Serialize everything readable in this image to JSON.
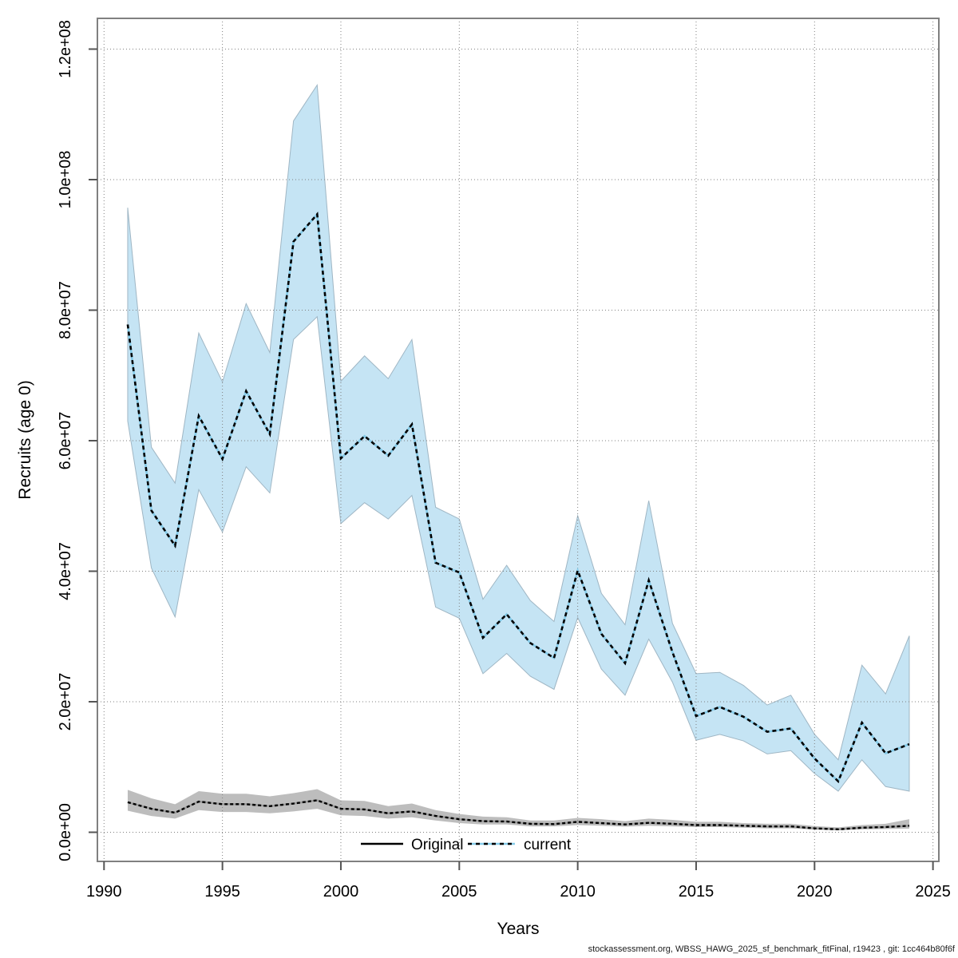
{
  "chart_data": {
    "type": "line",
    "title": "",
    "xlabel": "Years",
    "ylabel": "Recruits (age 0)",
    "xlim": [
      1989.6,
      2025.3
    ],
    "ylim": [
      0,
      126000000
    ],
    "grid": "dotted",
    "x_ticks": [
      1990,
      1995,
      2000,
      2005,
      2010,
      2015,
      2020,
      2025
    ],
    "y_ticks": [
      {
        "value": 0,
        "label": "0.0e+00"
      },
      {
        "value": 20000000,
        "label": "2.0e+07"
      },
      {
        "value": 40000000,
        "label": "4.0e+07"
      },
      {
        "value": 60000000,
        "label": "6.0e+07"
      },
      {
        "value": 80000000,
        "label": "8.0e+07"
      },
      {
        "value": 100000000,
        "label": "1.0e+08"
      },
      {
        "value": 120000000,
        "label": "1.2e+08"
      }
    ],
    "years": [
      1991,
      1992,
      1993,
      1994,
      1995,
      1996,
      1997,
      1998,
      1999,
      2000,
      2001,
      2002,
      2003,
      2004,
      2005,
      2006,
      2007,
      2008,
      2009,
      2010,
      2011,
      2012,
      2013,
      2014,
      2015,
      2016,
      2017,
      2018,
      2019,
      2020,
      2021,
      2022,
      2023,
      2024
    ],
    "legend": {
      "position": "bottom-center"
    },
    "colors": {
      "original_line": "#000000",
      "original_band": "#bdbdbd",
      "current_line_base": "#85cbe9",
      "current_band": "#c5e4f4",
      "grid": "#808080",
      "frame": "#808080"
    },
    "series": [
      {
        "name": "Original",
        "style": "solid-black-line-gray-band",
        "values": [
          4600000.0,
          3600000.0,
          3000000.0,
          4700000.0,
          4300000.0,
          4300000.0,
          4000000.0,
          4400000.0,
          4900000.0,
          3600000.0,
          3500000.0,
          2900000.0,
          3200000.0,
          2500000.0,
          2000000.0,
          1700000.0,
          1650000.0,
          1300000.0,
          1250000.0,
          1600000.0,
          1400000.0,
          1200000.0,
          1450000.0,
          1300000.0,
          1100000.0,
          1100000.0,
          1000000.0,
          900000.0,
          900000.0,
          600000.0,
          450000.0,
          700000.0,
          800000.0,
          1000000.0
        ],
        "lo": [
          3300000.0,
          2500000.0,
          2100000.0,
          3400000.0,
          3100000.0,
          3100000.0,
          2900000.0,
          3200000.0,
          3600000.0,
          2600000.0,
          2500000.0,
          2100000.0,
          2300000.0,
          1800000.0,
          1400000.0,
          1200000.0,
          1200000.0,
          900000.0,
          900000.0,
          1100000.0,
          1000000.0,
          850000.0,
          1000000.0,
          900000.0,
          800000.0,
          800000.0,
          700000.0,
          600000.0,
          600000.0,
          400000.0,
          300000.0,
          450000.0,
          500000.0,
          550000.0
        ],
        "hi": [
          6500000.0,
          5200000.0,
          4300000.0,
          6300000.0,
          5900000.0,
          5900000.0,
          5500000.0,
          6000000.0,
          6600000.0,
          4900000.0,
          4800000.0,
          4000000.0,
          4400000.0,
          3400000.0,
          2800000.0,
          2400000.0,
          2300000.0,
          1800000.0,
          1800000.0,
          2200000.0,
          2000000.0,
          1700000.0,
          2100000.0,
          1900000.0,
          1600000.0,
          1600000.0,
          1400000.0,
          1300000.0,
          1300000.0,
          950000.0,
          750000.0,
          1100000.0,
          1300000.0,
          2000000.0
        ]
      },
      {
        "name": "current",
        "style": "dotted-blue-line-lightblue-band",
        "values": [
          77800000.0,
          49300000.0,
          43900000.0,
          63800000.0,
          57200000.0,
          67600000.0,
          61000000.0,
          90500000.0,
          94700000.0,
          57300000.0,
          60700000.0,
          57700000.0,
          62500000.0,
          41300000.0,
          39800000.0,
          29800000.0,
          33400000.0,
          29000000.0,
          26700000.0,
          40100000.0,
          30400000.0,
          25900000.0,
          38600000.0,
          27600000.0,
          17800000.0,
          19200000.0,
          17700000.0,
          15400000.0,
          15900000.0,
          11300000.0,
          7800000.0,
          16800000.0,
          12100000.0,
          13500000.0
        ],
        "lo": [
          63000000.0,
          40500000.0,
          33000000.0,
          52500000.0,
          46000000.0,
          56000000.0,
          52000000.0,
          75500000.0,
          79000000.0,
          47300000.0,
          50500000.0,
          48000000.0,
          51600000.0,
          34500000.0,
          32800000.0,
          24300000.0,
          27400000.0,
          23900000.0,
          21900000.0,
          32900000.0,
          25000000.0,
          21000000.0,
          29600000.0,
          23000000.0,
          14100000.0,
          15000000.0,
          14000000.0,
          12000000.0,
          12500000.0,
          9000000.0,
          6300000.0,
          11100000.0,
          7000000.0,
          6300000.0
        ],
        "hi": [
          95700000.0,
          59000000.0,
          53500000.0,
          76500000.0,
          69000000.0,
          81000000.0,
          73500000.0,
          109000000.0,
          114500000.0,
          69100000.0,
          73000000.0,
          69500000.0,
          75500000.0,
          49800000.0,
          48000000.0,
          35700000.0,
          40900000.0,
          35500000.0,
          32300000.0,
          48500000.0,
          36600000.0,
          31800000.0,
          50800000.0,
          32000000.0,
          24300000.0,
          24500000.0,
          22500000.0,
          19500000.0,
          21000000.0,
          15000000.0,
          11100000.0,
          25600000.0,
          21200000.0,
          30100000.0
        ]
      }
    ]
  },
  "footer": {
    "text": "stockassessment.org, WBSS_HAWG_2025_sf_benchmark_fitFinal, r19423 , git: 1cc464b80f6f"
  }
}
